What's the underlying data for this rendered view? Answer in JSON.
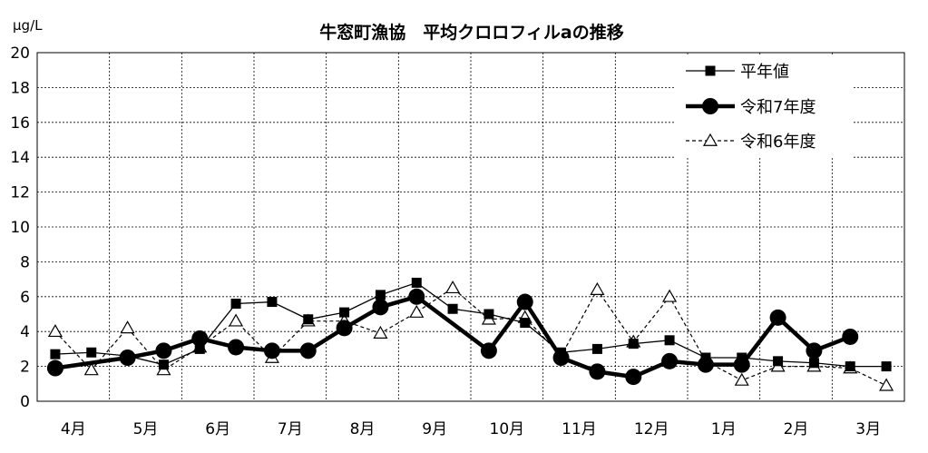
{
  "chart_data": {
    "type": "line",
    "title": "牛窓町漁協　平均クロロフィルaの推移",
    "unit_label": "μg/L",
    "ylim": [
      0,
      20
    ],
    "y_ticks": [
      "0",
      "2",
      "4",
      "6",
      "8",
      "10",
      "12",
      "14",
      "16",
      "18",
      "20"
    ],
    "categories": [
      "4月",
      "5月",
      "6月",
      "7月",
      "8月",
      "9月",
      "10月",
      "11月",
      "12月",
      "1月",
      "2月",
      "3月"
    ],
    "grid": true,
    "legend_position": "top-right",
    "series": [
      {
        "name": "平年値",
        "style": "thin-solid-square",
        "color": "#000000",
        "x": [
          0.25,
          0.75,
          1.25,
          1.75,
          2.25,
          2.75,
          3.25,
          3.75,
          4.25,
          4.75,
          5.25,
          5.75,
          6.25,
          6.75,
          7.25,
          7.75,
          8.25,
          8.75,
          9.25,
          9.75,
          10.25,
          10.75,
          11.25,
          11.75
        ],
        "values": [
          2.7,
          2.8,
          2.6,
          2.1,
          3.0,
          5.6,
          5.7,
          4.7,
          5.1,
          6.1,
          6.8,
          5.3,
          5.0,
          4.5,
          2.8,
          3.0,
          3.3,
          3.5,
          2.5,
          2.5,
          2.3,
          2.2,
          2.0,
          2.0
        ]
      },
      {
        "name": "令和7年度",
        "style": "thick-solid-circle",
        "color": "#000000",
        "x": [
          0.25,
          1.25,
          1.75,
          2.25,
          2.75,
          3.25,
          3.75,
          4.25,
          4.75,
          5.25,
          6.25,
          6.75,
          7.25,
          7.75,
          8.25,
          8.75,
          9.25,
          9.75,
          10.25,
          10.75,
          11.25
        ],
        "values": [
          1.9,
          2.5,
          2.9,
          3.6,
          3.1,
          2.9,
          2.9,
          4.2,
          5.4,
          6.0,
          2.9,
          5.7,
          2.5,
          1.7,
          1.4,
          2.3,
          2.1,
          2.1,
          4.8,
          2.9,
          3.7
        ]
      },
      {
        "name": "令和6年度",
        "style": "dashed-triangle",
        "color": "#000000",
        "x": [
          0.25,
          0.75,
          1.25,
          1.75,
          2.25,
          2.75,
          3.25,
          3.75,
          4.25,
          4.75,
          5.25,
          5.75,
          6.25,
          6.75,
          7.25,
          7.75,
          8.25,
          8.75,
          9.25,
          9.75,
          10.25,
          10.75,
          11.25,
          11.75
        ],
        "values": [
          4.0,
          1.8,
          4.2,
          1.8,
          3.1,
          4.6,
          2.5,
          4.6,
          4.6,
          3.9,
          5.1,
          6.5,
          4.7,
          4.8,
          2.6,
          6.4,
          3.4,
          6.0,
          2.3,
          1.2,
          2.0,
          2.0,
          1.9,
          0.9
        ]
      }
    ]
  }
}
